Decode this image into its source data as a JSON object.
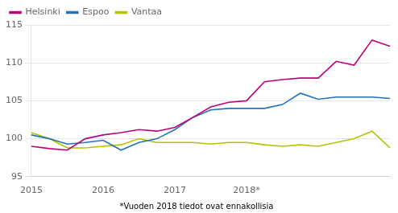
{
  "chart_data": {
    "type": "line",
    "categories": [
      "2015",
      null,
      null,
      null,
      "2016",
      null,
      null,
      null,
      "2017",
      null,
      null,
      null,
      "2018*",
      null,
      null,
      null,
      null,
      null,
      null,
      null,
      null
    ],
    "series": [
      {
        "name": "Helsinki",
        "color": "#c0007a",
        "values": [
          99.0,
          98.7,
          98.5,
          100.0,
          100.5,
          100.8,
          101.2,
          101.0,
          101.5,
          102.8,
          104.2,
          104.8,
          105.0,
          107.5,
          107.8,
          108.0,
          108.0,
          110.2,
          109.7,
          113.0,
          112.2
        ]
      },
      {
        "name": "Espoo",
        "color": "#2372b8",
        "values": [
          100.5,
          100.0,
          99.3,
          99.5,
          99.8,
          98.5,
          99.5,
          100.0,
          101.2,
          102.8,
          103.8,
          104.0,
          104.0,
          104.0,
          104.5,
          106.0,
          105.2,
          105.5,
          105.5,
          105.5,
          105.3
        ]
      },
      {
        "name": "Vantaa",
        "color": "#b5c400",
        "values": [
          100.8,
          100.0,
          98.8,
          98.8,
          99.0,
          99.2,
          100.0,
          99.5,
          99.5,
          99.5,
          99.3,
          99.5,
          99.5,
          99.2,
          99.0,
          99.2,
          99.0,
          99.5,
          100.0,
          101.0,
          98.8
        ]
      }
    ],
    "ylim": [
      95,
      115
    ],
    "yticks": [
      95,
      100,
      105,
      110,
      115
    ],
    "grid": "y",
    "legend": "upper left",
    "annotations": [
      "*Vuoden 2018 tiedot ovat ennakollisia"
    ]
  }
}
